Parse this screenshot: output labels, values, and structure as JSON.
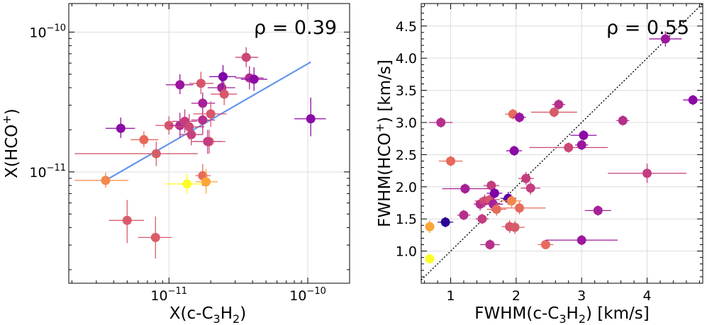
{
  "chart_data": [
    {
      "type": "scatter",
      "xscale": "log",
      "yscale": "log",
      "xlim": [
        1.9e-12,
        2e-10
      ],
      "ylim": [
        1.6e-12,
        1.6e-10
      ],
      "xlabel": "X(c-C",
      "xlabel_sub": "3",
      "xlabel_mid": "H",
      "xlabel_sub2": "2",
      "xlabel_end": ")",
      "ylabel": "X(HCO",
      "ylabel_sup": "+",
      "ylabel_end": ")",
      "annotation": "ρ = 0.39",
      "xticks": [
        {
          "base": "10",
          "exp": "−11",
          "value": 1e-11
        },
        {
          "base": "10",
          "exp": "−10",
          "value": 1e-10
        }
      ],
      "yticks": [
        {
          "base": "10",
          "exp": "−11",
          "value": 1e-11
        },
        {
          "base": "10",
          "exp": "−10",
          "value": 1e-10
        }
      ],
      "fit_line": {
        "x": [
          3.5e-12,
          1.05e-10
        ],
        "y": [
          8.7e-12,
          6.1e-11
        ],
        "color": "#6495ed"
      },
      "points": [
        {
          "x": 3.5e-12,
          "y": 8.7e-12,
          "xerr": [
            1.4e-12,
            1.6e-12
          ],
          "yerr": [
            1e-12,
            1.2e-12
          ],
          "color": "#f48849"
        },
        {
          "x": 5e-12,
          "y": 4.5e-12,
          "xerr": [
            1.3e-12,
            1.6e-12
          ],
          "yerr": [
            1.4e-12,
            1.8e-12
          ],
          "color": "#db5c68"
        },
        {
          "x": 8e-12,
          "y": 3.4e-12,
          "xerr": [
            2e-12,
            2.5e-12
          ],
          "yerr": [
            1e-12,
            1.4e-12
          ],
          "color": "#db5c68"
        },
        {
          "x": 4.5e-12,
          "y": 2.05e-11,
          "xerr": [
            1e-12,
            1.2e-12
          ],
          "yerr": [
            3e-12,
            4e-12
          ],
          "color": "#8b0aa5"
        },
        {
          "x": 6.6e-12,
          "y": 1.7e-11,
          "xerr": [
            1.3e-12,
            1.8e-12
          ],
          "yerr": [
            2e-12,
            2.5e-12
          ],
          "color": "#e8685a"
        },
        {
          "x": 8.1e-12,
          "y": 1.35e-11,
          "xerr": [
            6e-12,
            8e-12
          ],
          "yerr": [
            2.5e-12,
            3e-12
          ],
          "color": "#d45d69"
        },
        {
          "x": 1e-11,
          "y": 2.15e-11,
          "xerr": [
            2e-12,
            2.5e-12
          ],
          "yerr": [
            3e-12,
            3.5e-12
          ],
          "color": "#d6556d"
        },
        {
          "x": 1.2e-11,
          "y": 4.2e-11,
          "xerr": [
            2.5e-12,
            3e-12
          ],
          "yerr": [
            6e-12,
            8e-12
          ],
          "color": "#9c179e"
        },
        {
          "x": 1.2e-11,
          "y": 2.15e-11,
          "xerr": [
            2e-12,
            2.5e-12
          ],
          "yerr": [
            4e-12,
            5e-12
          ],
          "color": "#b02a8f"
        },
        {
          "x": 1.3e-11,
          "y": 2.3e-11,
          "xerr": [
            2.5e-12,
            3e-12
          ],
          "yerr": [
            4e-12,
            5e-12
          ],
          "color": "#c53d7e"
        },
        {
          "x": 1.4e-11,
          "y": 2.1e-11,
          "xerr": [
            3e-12,
            4e-12
          ],
          "yerr": [
            4e-12,
            5e-12
          ],
          "color": "#cd4a76"
        },
        {
          "x": 1.45e-11,
          "y": 1.85e-11,
          "xerr": [
            2.5e-12,
            3e-12
          ],
          "yerr": [
            3e-12,
            4e-12
          ],
          "color": "#c6417d"
        },
        {
          "x": 1.35e-11,
          "y": 8.2e-12,
          "xerr": [
            4e-12,
            5e-12
          ],
          "yerr": [
            1.2e-12,
            1.5e-12
          ],
          "color": "#fcfd28"
        },
        {
          "x": 1.7e-11,
          "y": 4.3e-11,
          "xerr": [
            3e-12,
            4e-12
          ],
          "yerr": [
            7e-12,
            9e-12
          ],
          "color": "#d6556d"
        },
        {
          "x": 1.75e-11,
          "y": 3.1e-11,
          "xerr": [
            3e-12,
            4e-12
          ],
          "yerr": [
            5e-12,
            6e-12
          ],
          "color": "#a62098"
        },
        {
          "x": 1.75e-11,
          "y": 2.35e-11,
          "xerr": [
            3e-12,
            4e-12
          ],
          "yerr": [
            5e-12,
            6e-12
          ],
          "color": "#b52f8c"
        },
        {
          "x": 1.75e-11,
          "y": 9.4e-12,
          "xerr": [
            2e-12,
            2.5e-12
          ],
          "yerr": [
            1.5e-12,
            2e-12
          ],
          "color": "#e56b5d"
        },
        {
          "x": 1.85e-11,
          "y": 8.5e-12,
          "xerr": [
            3e-12,
            4e-12
          ],
          "yerr": [
            1.5e-12,
            2e-12
          ],
          "color": "#fca636"
        },
        {
          "x": 1.95e-11,
          "y": 1.65e-11,
          "xerr": [
            5e-12,
            6e-12
          ],
          "yerr": [
            3e-12,
            3.5e-12
          ],
          "color": "#d8576b"
        },
        {
          "x": 2e-11,
          "y": 2.6e-11,
          "xerr": [
            5e-12,
            6e-12
          ],
          "yerr": [
            5e-12,
            6e-12
          ],
          "color": "#d8576b"
        },
        {
          "x": 1.9e-11,
          "y": 1.65e-11,
          "xerr": [
            4e-12,
            5e-12
          ],
          "yerr": [
            3e-12,
            3.5e-12
          ],
          "color": "#c33d80"
        },
        {
          "x": 2.4e-11,
          "y": 4e-11,
          "xerr": [
            5e-12,
            6e-12
          ],
          "yerr": [
            6e-12,
            8e-12
          ],
          "color": "#a42297"
        },
        {
          "x": 2.45e-11,
          "y": 4.8e-11,
          "xerr": [
            5e-12,
            6e-12
          ],
          "yerr": [
            8e-12,
            1e-11
          ],
          "color": "#7e03a8"
        },
        {
          "x": 2.5e-11,
          "y": 3.6e-11,
          "xerr": [
            5e-12,
            6e-12
          ],
          "yerr": [
            6e-12,
            8e-12
          ],
          "color": "#d8576b"
        },
        {
          "x": 3.6e-11,
          "y": 6.6e-11,
          "xerr": [
            6e-12,
            8e-12
          ],
          "yerr": [
            1e-11,
            1.2e-11
          ],
          "color": "#cc4778"
        },
        {
          "x": 3.8e-11,
          "y": 4.7e-11,
          "xerr": [
            8e-12,
            1e-11
          ],
          "yerr": [
            8e-12,
            1e-11
          ],
          "color": "#b12a90"
        },
        {
          "x": 4.1e-11,
          "y": 4.6e-11,
          "xerr": [
            8e-12,
            1e-11
          ],
          "yerr": [
            8e-12,
            1e-11
          ],
          "color": "#8b0aa5"
        },
        {
          "x": 1.05e-10,
          "y": 2.4e-11,
          "xerr": [
            2.5e-11,
            3e-11
          ],
          "yerr": [
            6e-12,
            1e-11
          ],
          "color": "#8b0aa5"
        }
      ]
    },
    {
      "type": "scatter",
      "xscale": "linear",
      "yscale": "linear",
      "xlim": [
        0.55,
        4.85
      ],
      "ylim": [
        0.5,
        4.85
      ],
      "xlabel": "FWHM(c-C",
      "xlabel_sub": "3",
      "xlabel_mid": "H",
      "xlabel_sub2": "2",
      "xlabel_end": ") [km/s]",
      "ylabel": "FWHM(HCO",
      "ylabel_sup": "+",
      "ylabel_end": ") [km/s]",
      "annotation": "ρ = 0.55",
      "xticks": [
        1,
        2,
        3,
        4
      ],
      "yticks": [
        "1.0",
        "1.5",
        "2.0",
        "2.5",
        "3.0",
        "3.5",
        "4.0",
        "4.5"
      ],
      "one_to_one": true,
      "points": [
        {
          "x": 0.68,
          "y": 0.88,
          "xerr": 0.06,
          "yerr": 0.06,
          "color": "#fcfd28"
        },
        {
          "x": 0.68,
          "y": 1.38,
          "xerr": 0.06,
          "yerr": 0.1,
          "color": "#fca636"
        },
        {
          "x": 0.92,
          "y": 1.45,
          "xerr": 0.12,
          "yerr": 0.08,
          "color": "#2a0893"
        },
        {
          "x": 0.85,
          "y": 3.0,
          "xerr": 0.18,
          "yerr": 0.08,
          "color": "#b52f8c"
        },
        {
          "x": 1.0,
          "y": 2.4,
          "xerr": 0.18,
          "yerr": 0.08,
          "color": "#e8685a"
        },
        {
          "x": 1.2,
          "y": 1.56,
          "xerr": 0.1,
          "yerr": 0.08,
          "color": "#b52f8c"
        },
        {
          "x": 1.22,
          "y": 1.97,
          "xerr": 0.35,
          "yerr": 0.08,
          "color": "#a62098"
        },
        {
          "x": 1.45,
          "y": 1.73,
          "xerr": 0.1,
          "yerr": 0.1,
          "color": "#b52f8c"
        },
        {
          "x": 1.48,
          "y": 1.5,
          "xerr": 0.1,
          "yerr": 0.08,
          "color": "#c33d80"
        },
        {
          "x": 1.52,
          "y": 1.78,
          "xerr": 0.15,
          "yerr": 0.1,
          "color": "#cc4778"
        },
        {
          "x": 1.6,
          "y": 1.8,
          "xerr": 0.15,
          "yerr": 0.1,
          "color": "#d6556d"
        },
        {
          "x": 1.6,
          "y": 1.1,
          "xerr": 0.15,
          "yerr": 0.08,
          "color": "#b52f8c"
        },
        {
          "x": 1.62,
          "y": 2.02,
          "xerr": 0.12,
          "yerr": 0.08,
          "color": "#c33d80"
        },
        {
          "x": 1.65,
          "y": 1.73,
          "xerr": 0.15,
          "yerr": 0.1,
          "color": "#a62098"
        },
        {
          "x": 1.67,
          "y": 1.9,
          "xerr": 0.12,
          "yerr": 0.08,
          "color": "#7e03a8"
        },
        {
          "x": 1.7,
          "y": 1.65,
          "xerr": 0.15,
          "yerr": 0.1,
          "color": "#e56b5d"
        },
        {
          "x": 1.88,
          "y": 1.82,
          "xerr": 0.12,
          "yerr": 0.1,
          "color": "#5c01a6"
        },
        {
          "x": 1.9,
          "y": 1.38,
          "xerr": 0.12,
          "yerr": 0.1,
          "color": "#d8576b"
        },
        {
          "x": 1.93,
          "y": 1.78,
          "xerr": 0.15,
          "yerr": 0.1,
          "color": "#f48849"
        },
        {
          "x": 1.95,
          "y": 3.13,
          "xerr": 0.12,
          "yerr": 0.08,
          "color": "#e56b5d"
        },
        {
          "x": 1.97,
          "y": 2.56,
          "xerr": 0.12,
          "yerr": 0.08,
          "color": "#8b0aa5"
        },
        {
          "x": 1.98,
          "y": 1.37,
          "xerr": 0.15,
          "yerr": 0.1,
          "color": "#d45d69"
        },
        {
          "x": 2.05,
          "y": 3.08,
          "xerr": 0.1,
          "yerr": 0.08,
          "color": "#9c179e"
        },
        {
          "x": 2.05,
          "y": 1.67,
          "xerr": 0.4,
          "yerr": 0.1,
          "color": "#e56b5d"
        },
        {
          "x": 2.15,
          "y": 2.13,
          "xerr": 0.12,
          "yerr": 0.1,
          "color": "#c53d7e"
        },
        {
          "x": 2.22,
          "y": 1.98,
          "xerr": 0.15,
          "yerr": 0.1,
          "color": "#c33d80"
        },
        {
          "x": 2.45,
          "y": 1.1,
          "xerr": 0.12,
          "yerr": 0.06,
          "color": "#e56b5d"
        },
        {
          "x": 2.58,
          "y": 3.16,
          "xerr": 0.35,
          "yerr": 0.08,
          "color": "#d45d69"
        },
        {
          "x": 2.65,
          "y": 3.28,
          "xerr": 0.1,
          "yerr": 0.08,
          "color": "#b52f8c"
        },
        {
          "x": 2.8,
          "y": 2.61,
          "xerr": 0.6,
          "yerr": 0.08,
          "color": "#cc4778"
        },
        {
          "x": 3.0,
          "y": 2.65,
          "xerr": 0.1,
          "yerr": 0.08,
          "color": "#9c179e"
        },
        {
          "x": 3.03,
          "y": 2.8,
          "xerr": 0.2,
          "yerr": 0.08,
          "color": "#8b0aa5"
        },
        {
          "x": 3.0,
          "y": 1.17,
          "xerr": 0.55,
          "yerr": 0.08,
          "color": "#9c179e"
        },
        {
          "x": 3.25,
          "y": 1.63,
          "xerr": 0.2,
          "yerr": 0.08,
          "color": "#a62098"
        },
        {
          "x": 3.63,
          "y": 3.03,
          "xerr": 0.1,
          "yerr": 0.08,
          "color": "#b52f8c"
        },
        {
          "x": 4.0,
          "y": 2.21,
          "xerr": 0.6,
          "yerr": 0.15,
          "color": "#c53d7e"
        },
        {
          "x": 4.28,
          "y": 4.3,
          "xerr": 0.25,
          "yerr": 0.12,
          "color": "#9c179e"
        },
        {
          "x": 4.7,
          "y": 3.35,
          "xerr": 0.15,
          "yerr": 0.08,
          "color": "#8b0aa5"
        }
      ]
    }
  ]
}
